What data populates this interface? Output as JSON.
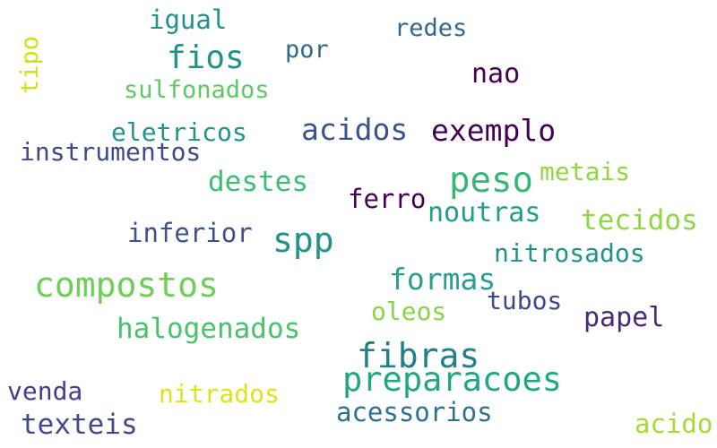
{
  "words": [
    {
      "text": "igual",
      "color": "#21918c"
    },
    {
      "text": "fios",
      "color": "#21918c"
    },
    {
      "text": "por",
      "color": "#31688e"
    },
    {
      "text": "redes",
      "color": "#31688e"
    },
    {
      "text": "tipo",
      "color": "#d0e11c"
    },
    {
      "text": "sulfonados",
      "color": "#5ec962"
    },
    {
      "text": "nao",
      "color": "#440154"
    },
    {
      "text": "eletricos",
      "color": "#21918c"
    },
    {
      "text": "acidos",
      "color": "#3b528b"
    },
    {
      "text": "exemplo",
      "color": "#440154"
    },
    {
      "text": "instrumentos",
      "color": "#3e4a89"
    },
    {
      "text": "peso",
      "color": "#35b779"
    },
    {
      "text": "metais",
      "color": "#90d743"
    },
    {
      "text": "destes",
      "color": "#3dbc74"
    },
    {
      "text": "ferro",
      "color": "#440154"
    },
    {
      "text": "noutras",
      "color": "#1f9e89"
    },
    {
      "text": "tecidos",
      "color": "#90d743"
    },
    {
      "text": "inferior",
      "color": "#3b528b"
    },
    {
      "text": "spp",
      "color": "#21918c"
    },
    {
      "text": "nitrosados",
      "color": "#21918c"
    },
    {
      "text": "compostos",
      "color": "#6ece58"
    },
    {
      "text": "formas",
      "color": "#2a9d8f"
    },
    {
      "text": "tubos",
      "color": "#3e4a89"
    },
    {
      "text": "oleos",
      "color": "#86d549"
    },
    {
      "text": "papel",
      "color": "#482878"
    },
    {
      "text": "halogenados",
      "color": "#4ac16d"
    },
    {
      "text": "fibras",
      "color": "#1f7f8b"
    },
    {
      "text": "preparacoes",
      "color": "#21a685"
    },
    {
      "text": "venda",
      "color": "#433e85"
    },
    {
      "text": "nitrados",
      "color": "#dde318"
    },
    {
      "text": "texteis",
      "color": "#3e4a89"
    },
    {
      "text": "acessorios",
      "color": "#2c728e"
    },
    {
      "text": "acido",
      "color": "#a5db36"
    }
  ]
}
